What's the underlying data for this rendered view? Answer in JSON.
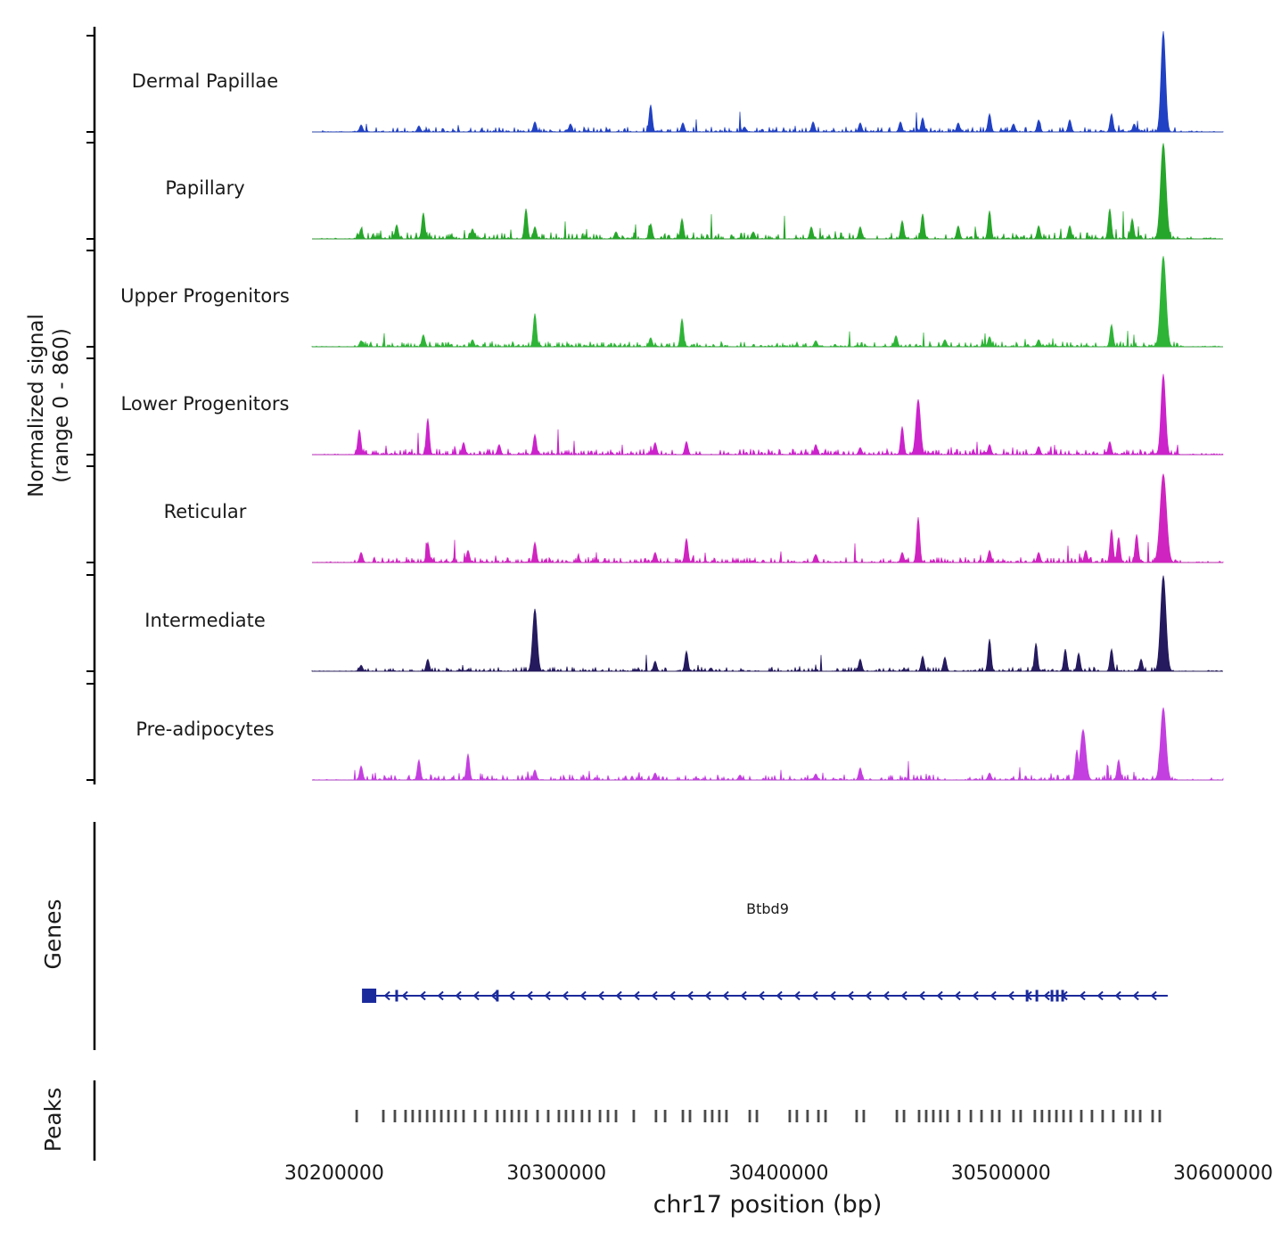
{
  "left_labels": {
    "signal_axis_line1": "Normalized signal",
    "signal_axis_line2": "(range 0 - 860)",
    "genes": "Genes",
    "peaks": "Peaks"
  },
  "chart_data": {
    "type": "area",
    "title": "",
    "xlabel": "chr17 position (bp)",
    "ylabel": "Normalized signal (range 0 - 860)",
    "y_range": [
      0,
      860
    ],
    "x_axis_region_bp": [
      30190000,
      30600000
    ],
    "x_ticks": [
      30200000,
      30300000,
      30400000,
      30500000,
      30600000
    ],
    "x_tick_labels": [
      "30200000",
      "30300000",
      "30400000",
      "30500000",
      "30600000"
    ],
    "series": [
      {
        "name": "Dermal Papillae",
        "color": "#2141c4",
        "seed": 101,
        "noise_amp": 2.6,
        "noise_density": 0.025,
        "peaks": [
          [
            30212100,
            0.07
          ],
          [
            30238100,
            0.06
          ],
          [
            30290300,
            0.1
          ],
          [
            30306300,
            0.08
          ],
          [
            30342400,
            0.27
          ],
          [
            30356900,
            0.09
          ],
          [
            30384600,
            0.05
          ],
          [
            30415500,
            0.1
          ],
          [
            30436700,
            0.09
          ],
          [
            30454800,
            0.1
          ],
          [
            30464800,
            0.14
          ],
          [
            30480800,
            0.09
          ],
          [
            30494900,
            0.18
          ],
          [
            30505700,
            0.08
          ],
          [
            30517000,
            0.12
          ],
          [
            30531000,
            0.12
          ],
          [
            30549800,
            0.18
          ],
          [
            30560000,
            0.08
          ],
          [
            30573100,
            1.0,
            2.5
          ]
        ]
      },
      {
        "name": "Papillary",
        "color": "#26a62a",
        "seed": 202,
        "noise_amp": 3.4,
        "noise_density": 0.06,
        "peaks": [
          [
            30212100,
            0.1
          ],
          [
            30228100,
            0.14
          ],
          [
            30240100,
            0.26
          ],
          [
            30262200,
            0.1
          ],
          [
            30286300,
            0.3
          ],
          [
            30290300,
            0.12
          ],
          [
            30326800,
            0.07
          ],
          [
            30342400,
            0.15
          ],
          [
            30356500,
            0.2
          ],
          [
            30388600,
            0.07
          ],
          [
            30414700,
            0.12
          ],
          [
            30436700,
            0.12
          ],
          [
            30455600,
            0.18
          ],
          [
            30464800,
            0.25
          ],
          [
            30480800,
            0.13
          ],
          [
            30494900,
            0.28
          ],
          [
            30517000,
            0.13
          ],
          [
            30531000,
            0.13
          ],
          [
            30549000,
            0.3
          ],
          [
            30559100,
            0.2
          ],
          [
            30573100,
            0.95,
            3
          ]
        ]
      },
      {
        "name": "Upper Progenitors",
        "color": "#2eb437",
        "seed": 303,
        "noise_amp": 2.6,
        "noise_density": 0.035,
        "peaks": [
          [
            30212100,
            0.06
          ],
          [
            30240100,
            0.12
          ],
          [
            30262200,
            0.07
          ],
          [
            30290300,
            0.33
          ],
          [
            30342400,
            0.09
          ],
          [
            30356500,
            0.28
          ],
          [
            30416700,
            0.06
          ],
          [
            30452800,
            0.11
          ],
          [
            30474800,
            0.07
          ],
          [
            30494900,
            0.1
          ],
          [
            30517000,
            0.07
          ],
          [
            30549800,
            0.22
          ],
          [
            30573100,
            0.9,
            3
          ]
        ]
      },
      {
        "name": "Lower Progenitors",
        "color": "#cc22cc",
        "seed": 404,
        "noise_amp": 3.0,
        "noise_density": 0.045,
        "peaks": [
          [
            30211300,
            0.25
          ],
          [
            30242100,
            0.36
          ],
          [
            30258200,
            0.12
          ],
          [
            30274200,
            0.1
          ],
          [
            30290300,
            0.2
          ],
          [
            30344400,
            0.12
          ],
          [
            30358500,
            0.13
          ],
          [
            30416700,
            0.1
          ],
          [
            30436700,
            0.07
          ],
          [
            30455600,
            0.28
          ],
          [
            30462800,
            0.55,
            2.5
          ],
          [
            30494900,
            0.1
          ],
          [
            30517000,
            0.08
          ],
          [
            30549000,
            0.13
          ],
          [
            30573100,
            0.8,
            2.5
          ]
        ]
      },
      {
        "name": "Reticular",
        "color": "#d024c0",
        "seed": 505,
        "noise_amp": 2.8,
        "noise_density": 0.045,
        "peaks": [
          [
            30212100,
            0.1
          ],
          [
            30242100,
            0.2
          ],
          [
            30260200,
            0.12
          ],
          [
            30290300,
            0.2
          ],
          [
            30344400,
            0.1
          ],
          [
            30358500,
            0.24
          ],
          [
            30416700,
            0.08
          ],
          [
            30455600,
            0.1
          ],
          [
            30462800,
            0.45
          ],
          [
            30494900,
            0.12
          ],
          [
            30517000,
            0.1
          ],
          [
            30538200,
            0.12
          ],
          [
            30549800,
            0.33
          ],
          [
            30553000,
            0.25
          ],
          [
            30561100,
            0.28
          ],
          [
            30573100,
            0.88,
            3.5
          ]
        ]
      },
      {
        "name": "Intermediate",
        "color": "#251a5e",
        "seed": 606,
        "noise_amp": 2.2,
        "noise_density": 0.025,
        "peaks": [
          [
            30212100,
            0.06
          ],
          [
            30242100,
            0.12
          ],
          [
            30290300,
            0.62,
            2.5
          ],
          [
            30344400,
            0.1
          ],
          [
            30358500,
            0.2
          ],
          [
            30436700,
            0.12
          ],
          [
            30464800,
            0.15
          ],
          [
            30474800,
            0.14
          ],
          [
            30494900,
            0.32
          ],
          [
            30515800,
            0.28
          ],
          [
            30529000,
            0.22
          ],
          [
            30535000,
            0.18
          ],
          [
            30549800,
            0.22
          ],
          [
            30563100,
            0.12
          ],
          [
            30573100,
            0.95,
            3
          ]
        ]
      },
      {
        "name": "Pre-adipocytes",
        "color": "#c43fe0",
        "seed": 707,
        "noise_amp": 2.8,
        "noise_density": 0.045,
        "peaks": [
          [
            30212100,
            0.14
          ],
          [
            30238100,
            0.2
          ],
          [
            30260200,
            0.26
          ],
          [
            30290300,
            0.1
          ],
          [
            30344400,
            0.07
          ],
          [
            30382600,
            0.05
          ],
          [
            30416700,
            0.06
          ],
          [
            30436700,
            0.12
          ],
          [
            30494900,
            0.07
          ],
          [
            30534200,
            0.3
          ],
          [
            30537000,
            0.5,
            3
          ],
          [
            30553000,
            0.2
          ],
          [
            30573100,
            0.72,
            3
          ]
        ]
      }
    ],
    "gene": {
      "name": "Btbd9",
      "start": 30214100,
      "end": 30575100,
      "strand": "-",
      "color": "#1b2a9b",
      "exons": [
        30228100,
        30273400,
        30511800,
        30516200,
        30523000,
        30525400,
        30527800
      ]
    },
    "peaks_track": {
      "color": "#4a4a4a",
      "positions": [
        30210100,
        30222100,
        30227300,
        30232100,
        30235300,
        30238500,
        30241800,
        30245000,
        30248200,
        30251400,
        30254600,
        30258200,
        30263400,
        30268200,
        30273400,
        30276600,
        30279900,
        30283100,
        30286300,
        30291500,
        30296300,
        30301100,
        30304300,
        30307500,
        30311500,
        30314800,
        30319600,
        30323200,
        30326800,
        30334800,
        30344800,
        30348900,
        30356900,
        30360100,
        30366900,
        30370100,
        30373300,
        30376500,
        30387000,
        30390200,
        30405000,
        30408200,
        30413000,
        30417900,
        30421100,
        30435100,
        30438300,
        30453200,
        30456400,
        30463200,
        30466400,
        30469600,
        30472800,
        30476000,
        30481200,
        30486500,
        30491300,
        30496100,
        30499300,
        30505700,
        30508900,
        30515300,
        30518500,
        30521800,
        30525000,
        30528200,
        30531400,
        30536200,
        30541000,
        30545800,
        30550600,
        30556300,
        30559500,
        30562700,
        30568300,
        30571500
      ]
    }
  }
}
